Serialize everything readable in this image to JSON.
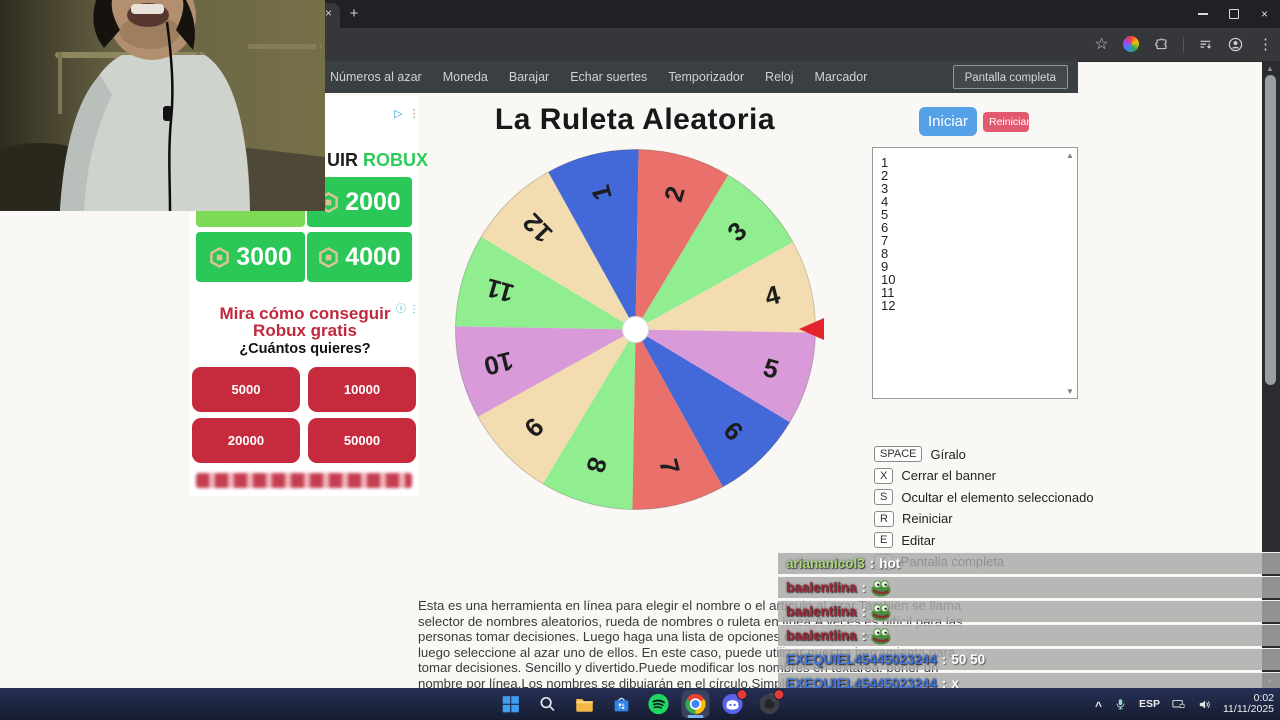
{
  "browser": {
    "tab_close_icon": "×",
    "new_tab_icon": "+",
    "window_controls": [
      "minimize-icon",
      "restore-icon",
      "close-icon"
    ],
    "toolbar_icons": [
      "bookmark-star-icon",
      "theme-ball-icon",
      "extensions-icon",
      "reading-list-icon",
      "profile-icon",
      "menu-dots-icon"
    ],
    "scrollbar_up": "▲",
    "scrollbar_down": "▼"
  },
  "site": {
    "nav_items": [
      "Números al azar",
      "Moneda",
      "Barajar",
      "Echar suertes",
      "Temporizador",
      "Reloj",
      "Marcador"
    ],
    "fullscreen_button": "Pantalla completa"
  },
  "main": {
    "title": "La Ruleta Aleatoria",
    "start_button": "Iniciar",
    "reset_button": "Reiniciar",
    "names": [
      "1",
      "2",
      "3",
      "4",
      "5",
      "6",
      "7",
      "8",
      "9",
      "10",
      "11",
      "12"
    ],
    "textarea_scroll_up": "▲",
    "textarea_scroll_down": "▼",
    "shortcuts": [
      {
        "key": "SPACE",
        "label": "Gíralo"
      },
      {
        "key": "X",
        "label": "Cerrar el banner"
      },
      {
        "key": "S",
        "label": "Ocultar el elemento seleccionado"
      },
      {
        "key": "R",
        "label": "Reiniciar"
      },
      {
        "key": "E",
        "label": "Editar"
      },
      {
        "key": "F",
        "label": "Pantalla completa"
      }
    ],
    "description_lines": [
      "Esta es una herramienta en línea para elegir el nombre o el artículo al azar.También se llama",
      "selector de nombres aleatorios, rueda de nombres o ruleta en línea.A veces es difícil para las",
      "personas tomar decisiones. Luego haga una lista de opciones o candidatos ex",
      "luego seleccione al azar uno de ellos. En este caso, puede utilizar nuestra herramienta para",
      "tomar decisiones. Sencillo y divertido.Puede modificar los nombres en textarea, poner un",
      "nombre por línea.Los nombres se dibujarán en el círculo.Simplemente haga cli"
    ]
  },
  "wheel": {
    "start_angle": -29,
    "pointer_color": "#e3242b",
    "center_color": "#ffffff",
    "segments": [
      {
        "label": "1",
        "color": "#4368d8"
      },
      {
        "label": "2",
        "color": "#ea716b"
      },
      {
        "label": "3",
        "color": "#90ee90"
      },
      {
        "label": "4",
        "color": "#f3ddb0"
      },
      {
        "label": "5",
        "color": "#d89ad8"
      },
      {
        "label": "6",
        "color": "#4368d8"
      },
      {
        "label": "7",
        "color": "#ea716b"
      },
      {
        "label": "8",
        "color": "#90ee90"
      },
      {
        "label": "9",
        "color": "#f3ddb0"
      },
      {
        "label": "10",
        "color": "#d89ad8"
      },
      {
        "label": "11",
        "color": "#90ee90"
      },
      {
        "label": "12",
        "color": "#f3ddb0"
      }
    ]
  },
  "ads": {
    "robux_ad": {
      "adchoices_icon": "▷",
      "more_icon": "⋮",
      "heading_dark": "UIR",
      "heading_green": " ROBUX",
      "amounts": [
        "2000",
        "3000",
        "4000"
      ],
      "button_color": "#2bc757",
      "partial_button_color": "#7ed957"
    },
    "robux_quiz": {
      "info_icon": "ⓘ",
      "more_icon": "⋮",
      "title": "Mira cómo conseguir Robux gratis",
      "question": "¿Cuántos quieres?",
      "amounts": [
        "5000",
        "10000",
        "20000",
        "50000"
      ]
    }
  },
  "chat": {
    "separator": ":",
    "rows": [
      {
        "user": "ariananicol3",
        "user_color": "#aad97c",
        "message": "hot",
        "emote": false
      },
      {
        "user": "baalentlina",
        "user_color": "#a12739",
        "message": "",
        "emote": true
      },
      {
        "user": "baalentlina",
        "user_color": "#a12739",
        "message": "",
        "emote": true
      },
      {
        "user": "baalentlina",
        "user_color": "#a12739",
        "message": "",
        "emote": true
      },
      {
        "user": "EXEQUIEL45445023244",
        "user_color": "#3f74dc",
        "message": "50 50",
        "emote": false
      },
      {
        "user": "EXEQUIEL45445023244",
        "user_color": "#3f74dc",
        "message": "x",
        "emote": false
      }
    ]
  },
  "taskbar": {
    "app_icons": [
      "start-icon",
      "search-icon",
      "explorer-icon",
      "store-icon",
      "spotify-icon",
      "chrome-icon",
      "discord-icon",
      "capture-icon"
    ],
    "active_app": "chrome-icon",
    "badged_apps": [
      "discord-icon",
      "capture-icon"
    ],
    "tray": {
      "chevron": "^",
      "icons": [
        "mic-icon",
        "display-icon",
        "volume-icon"
      ],
      "language": "ESP",
      "time": "0:02",
      "date": "11/11/2025"
    }
  }
}
